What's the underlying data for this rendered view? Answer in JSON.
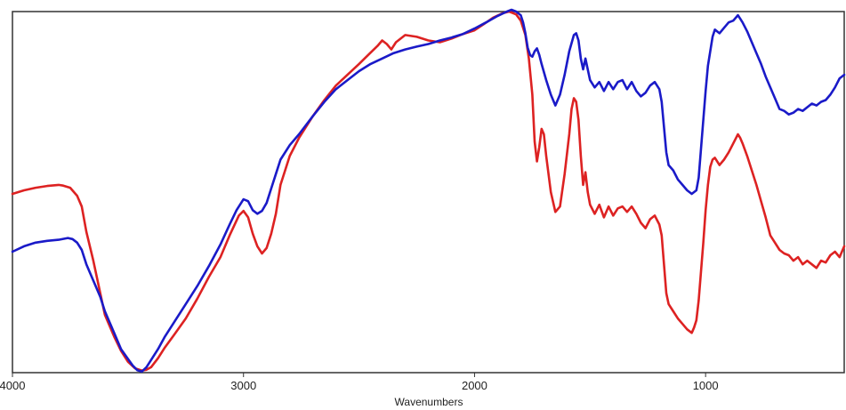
{
  "chart_data": {
    "type": "line",
    "title": "",
    "xlabel": "Wavenumbers",
    "ylabel": "",
    "x_reversed": true,
    "xlim": [
      4000,
      400
    ],
    "ylim": [
      0,
      100
    ],
    "x_ticks": [
      4000,
      3000,
      2000,
      1000
    ],
    "x_tick_labels": [
      "4000",
      "3000",
      "2000",
      "1000"
    ],
    "grid": false,
    "y_ticks_shown": false,
    "series": [
      {
        "color": "#dd2222",
        "points": [
          [
            4000,
            49.5
          ],
          [
            3950,
            50.5
          ],
          [
            3900,
            51.2
          ],
          [
            3850,
            51.7
          ],
          [
            3800,
            52.0
          ],
          [
            3780,
            51.8
          ],
          [
            3750,
            51.2
          ],
          [
            3720,
            49.0
          ],
          [
            3700,
            46.0
          ],
          [
            3680,
            39.0
          ],
          [
            3650,
            31.0
          ],
          [
            3620,
            22.0
          ],
          [
            3600,
            16.0
          ],
          [
            3560,
            10.0
          ],
          [
            3530,
            6.0
          ],
          [
            3500,
            3.0
          ],
          [
            3470,
            1.2
          ],
          [
            3440,
            0.6
          ],
          [
            3420,
            0.8
          ],
          [
            3400,
            1.5
          ],
          [
            3370,
            4.0
          ],
          [
            3340,
            7.0
          ],
          [
            3300,
            10.5
          ],
          [
            3250,
            15.0
          ],
          [
            3200,
            20.5
          ],
          [
            3150,
            26.5
          ],
          [
            3100,
            32.0
          ],
          [
            3060,
            38.0
          ],
          [
            3020,
            43.5
          ],
          [
            3000,
            44.8
          ],
          [
            2980,
            43.0
          ],
          [
            2960,
            38.5
          ],
          [
            2940,
            35.0
          ],
          [
            2920,
            33.0
          ],
          [
            2900,
            34.5
          ],
          [
            2880,
            38.5
          ],
          [
            2860,
            44.0
          ],
          [
            2840,
            52.0
          ],
          [
            2800,
            60.0
          ],
          [
            2760,
            65.0
          ],
          [
            2700,
            71.0
          ],
          [
            2650,
            75.5
          ],
          [
            2600,
            79.5
          ],
          [
            2550,
            82.5
          ],
          [
            2500,
            85.5
          ],
          [
            2460,
            88.0
          ],
          [
            2420,
            90.5
          ],
          [
            2400,
            92.0
          ],
          [
            2380,
            91.0
          ],
          [
            2360,
            89.5
          ],
          [
            2340,
            91.5
          ],
          [
            2300,
            93.5
          ],
          [
            2250,
            93.0
          ],
          [
            2200,
            92.0
          ],
          [
            2150,
            91.5
          ],
          [
            2100,
            92.5
          ],
          [
            2050,
            93.8
          ],
          [
            2000,
            94.8
          ],
          [
            1960,
            96.5
          ],
          [
            1920,
            98.3
          ],
          [
            1880,
            99.5
          ],
          [
            1850,
            100.0
          ],
          [
            1820,
            99.2
          ],
          [
            1800,
            97.5
          ],
          [
            1780,
            93.5
          ],
          [
            1765,
            87.0
          ],
          [
            1750,
            77.0
          ],
          [
            1740,
            64.0
          ],
          [
            1730,
            58.5
          ],
          [
            1720,
            62.5
          ],
          [
            1710,
            67.5
          ],
          [
            1700,
            66.0
          ],
          [
            1690,
            60.0
          ],
          [
            1670,
            50.0
          ],
          [
            1650,
            44.5
          ],
          [
            1630,
            46.0
          ],
          [
            1610,
            55.0
          ],
          [
            1590,
            66.0
          ],
          [
            1580,
            73.0
          ],
          [
            1570,
            76.0
          ],
          [
            1560,
            75.0
          ],
          [
            1550,
            70.0
          ],
          [
            1540,
            60.0
          ],
          [
            1530,
            52.0
          ],
          [
            1520,
            55.5
          ],
          [
            1510,
            50.0
          ],
          [
            1500,
            46.5
          ],
          [
            1480,
            44.0
          ],
          [
            1460,
            46.5
          ],
          [
            1440,
            43.0
          ],
          [
            1420,
            46.0
          ],
          [
            1400,
            43.5
          ],
          [
            1380,
            45.5
          ],
          [
            1360,
            46.0
          ],
          [
            1340,
            44.5
          ],
          [
            1320,
            46.0
          ],
          [
            1300,
            44.0
          ],
          [
            1280,
            41.5
          ],
          [
            1260,
            40.0
          ],
          [
            1240,
            42.5
          ],
          [
            1220,
            43.5
          ],
          [
            1200,
            41.0
          ],
          [
            1190,
            38.0
          ],
          [
            1180,
            30.0
          ],
          [
            1170,
            22.0
          ],
          [
            1160,
            19.0
          ],
          [
            1140,
            17.0
          ],
          [
            1120,
            15.0
          ],
          [
            1100,
            13.5
          ],
          [
            1080,
            12.0
          ],
          [
            1060,
            11.0
          ],
          [
            1050,
            12.5
          ],
          [
            1040,
            14.5
          ],
          [
            1030,
            20.0
          ],
          [
            1020,
            28.0
          ],
          [
            1010,
            36.0
          ],
          [
            1000,
            45.0
          ],
          [
            990,
            52.0
          ],
          [
            980,
            57.0
          ],
          [
            970,
            59.0
          ],
          [
            960,
            59.5
          ],
          [
            940,
            57.5
          ],
          [
            920,
            59.0
          ],
          [
            900,
            61.0
          ],
          [
            880,
            63.5
          ],
          [
            860,
            66.0
          ],
          [
            850,
            65.0
          ],
          [
            840,
            63.5
          ],
          [
            820,
            60.0
          ],
          [
            800,
            56.0
          ],
          [
            780,
            52.0
          ],
          [
            760,
            47.5
          ],
          [
            740,
            43.0
          ],
          [
            720,
            38.0
          ],
          [
            700,
            36.0
          ],
          [
            680,
            34.0
          ],
          [
            660,
            33.0
          ],
          [
            640,
            32.5
          ],
          [
            620,
            31.0
          ],
          [
            600,
            32.0
          ],
          [
            580,
            30.0
          ],
          [
            560,
            31.0
          ],
          [
            540,
            30.0
          ],
          [
            520,
            29.0
          ],
          [
            500,
            31.0
          ],
          [
            480,
            30.5
          ],
          [
            460,
            32.5
          ],
          [
            440,
            33.5
          ],
          [
            420,
            32.0
          ],
          [
            400,
            35.0
          ]
        ]
      },
      {
        "color": "#1a1ac8",
        "points": [
          [
            4000,
            33.5
          ],
          [
            3950,
            35.0
          ],
          [
            3900,
            36.0
          ],
          [
            3850,
            36.5
          ],
          [
            3800,
            36.8
          ],
          [
            3760,
            37.3
          ],
          [
            3740,
            37.0
          ],
          [
            3720,
            36.0
          ],
          [
            3700,
            34.0
          ],
          [
            3680,
            30.0
          ],
          [
            3650,
            25.5
          ],
          [
            3620,
            21.0
          ],
          [
            3600,
            17.0
          ],
          [
            3560,
            11.0
          ],
          [
            3530,
            6.5
          ],
          [
            3500,
            3.8
          ],
          [
            3480,
            2.0
          ],
          [
            3460,
            0.7
          ],
          [
            3440,
            0.3
          ],
          [
            3420,
            1.5
          ],
          [
            3400,
            3.5
          ],
          [
            3370,
            6.5
          ],
          [
            3340,
            10.0
          ],
          [
            3300,
            14.0
          ],
          [
            3250,
            19.0
          ],
          [
            3200,
            24.0
          ],
          [
            3150,
            29.5
          ],
          [
            3100,
            35.5
          ],
          [
            3060,
            41.0
          ],
          [
            3030,
            45.0
          ],
          [
            3000,
            48.0
          ],
          [
            2980,
            47.5
          ],
          [
            2960,
            45.0
          ],
          [
            2940,
            44.0
          ],
          [
            2920,
            44.8
          ],
          [
            2900,
            47.0
          ],
          [
            2880,
            51.0
          ],
          [
            2860,
            55.0
          ],
          [
            2840,
            59.0
          ],
          [
            2800,
            63.0
          ],
          [
            2760,
            66.0
          ],
          [
            2700,
            71.0
          ],
          [
            2650,
            75.0
          ],
          [
            2600,
            78.5
          ],
          [
            2550,
            81.0
          ],
          [
            2500,
            83.5
          ],
          [
            2450,
            85.5
          ],
          [
            2400,
            87.0
          ],
          [
            2350,
            88.5
          ],
          [
            2300,
            89.5
          ],
          [
            2250,
            90.3
          ],
          [
            2200,
            91.0
          ],
          [
            2150,
            92.0
          ],
          [
            2100,
            92.8
          ],
          [
            2050,
            93.8
          ],
          [
            2000,
            95.3
          ],
          [
            1950,
            97.0
          ],
          [
            1900,
            98.8
          ],
          [
            1860,
            100.0
          ],
          [
            1840,
            100.5
          ],
          [
            1820,
            100.0
          ],
          [
            1800,
            99.0
          ],
          [
            1790,
            97.0
          ],
          [
            1780,
            94.0
          ],
          [
            1770,
            90.0
          ],
          [
            1760,
            88.0
          ],
          [
            1750,
            87.5
          ],
          [
            1740,
            89.0
          ],
          [
            1730,
            89.8
          ],
          [
            1720,
            88.0
          ],
          [
            1710,
            85.5
          ],
          [
            1690,
            81.0
          ],
          [
            1670,
            77.0
          ],
          [
            1650,
            74.0
          ],
          [
            1630,
            77.0
          ],
          [
            1610,
            82.5
          ],
          [
            1590,
            89.0
          ],
          [
            1570,
            93.5
          ],
          [
            1560,
            94.0
          ],
          [
            1550,
            92.0
          ],
          [
            1540,
            87.0
          ],
          [
            1530,
            84.0
          ],
          [
            1520,
            87.0
          ],
          [
            1510,
            84.0
          ],
          [
            1500,
            81.0
          ],
          [
            1480,
            79.0
          ],
          [
            1460,
            80.5
          ],
          [
            1440,
            78.0
          ],
          [
            1420,
            80.5
          ],
          [
            1400,
            78.5
          ],
          [
            1380,
            80.5
          ],
          [
            1360,
            81.0
          ],
          [
            1340,
            78.5
          ],
          [
            1320,
            80.5
          ],
          [
            1300,
            78.0
          ],
          [
            1280,
            76.5
          ],
          [
            1260,
            77.5
          ],
          [
            1240,
            79.5
          ],
          [
            1220,
            80.5
          ],
          [
            1200,
            78.5
          ],
          [
            1190,
            75.0
          ],
          [
            1180,
            68.0
          ],
          [
            1170,
            61.0
          ],
          [
            1160,
            57.5
          ],
          [
            1140,
            56.0
          ],
          [
            1120,
            53.5
          ],
          [
            1100,
            52.0
          ],
          [
            1080,
            50.5
          ],
          [
            1060,
            49.5
          ],
          [
            1040,
            50.5
          ],
          [
            1030,
            54.0
          ],
          [
            1020,
            62.0
          ],
          [
            1010,
            70.0
          ],
          [
            1000,
            78.0
          ],
          [
            990,
            85.0
          ],
          [
            980,
            89.0
          ],
          [
            970,
            93.0
          ],
          [
            960,
            95.0
          ],
          [
            940,
            94.0
          ],
          [
            920,
            95.5
          ],
          [
            900,
            97.0
          ],
          [
            880,
            97.5
          ],
          [
            860,
            99.0
          ],
          [
            850,
            98.0
          ],
          [
            840,
            97.0
          ],
          [
            820,
            94.5
          ],
          [
            800,
            91.5
          ],
          [
            780,
            88.5
          ],
          [
            760,
            85.5
          ],
          [
            740,
            82.0
          ],
          [
            720,
            79.0
          ],
          [
            700,
            76.0
          ],
          [
            680,
            73.0
          ],
          [
            660,
            72.5
          ],
          [
            640,
            71.5
          ],
          [
            620,
            72.0
          ],
          [
            600,
            73.0
          ],
          [
            580,
            72.5
          ],
          [
            560,
            73.5
          ],
          [
            540,
            74.5
          ],
          [
            520,
            74.0
          ],
          [
            500,
            75.0
          ],
          [
            480,
            75.5
          ],
          [
            460,
            77.0
          ],
          [
            440,
            79.0
          ],
          [
            420,
            81.5
          ],
          [
            400,
            82.5
          ]
        ]
      }
    ]
  }
}
